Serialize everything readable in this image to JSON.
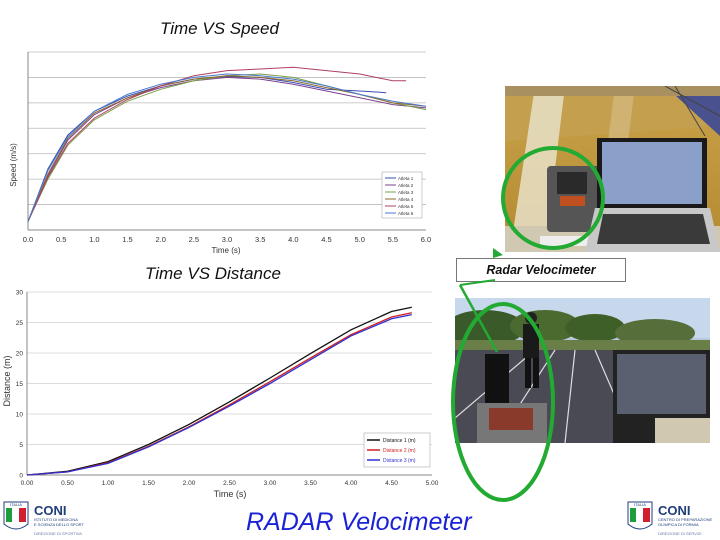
{
  "titles": {
    "speed": "Time VS Speed",
    "distance": "Time VS Distance",
    "radar_label": "Radar Velocimeter",
    "footer": "RADAR Velocimeter"
  },
  "colors": {
    "footer_text": "#1a22d6",
    "highlight_circle": "#22aa33",
    "series": [
      "#3a4fb5",
      "#7a4090",
      "#7aa048",
      "#8c6a2a",
      "#b04060",
      "#4a7ad0"
    ]
  },
  "logos": {
    "left": {
      "badge": "ITALIA",
      "word": "CONI",
      "line1": "ISTITUTO DI MEDICINA",
      "line2": "E SCIENZA DELLO SPORT",
      "line3": "DIREZIONE DI SPORTIVA"
    },
    "right": {
      "badge": "ITALIA",
      "word": "CONI",
      "line1": "CENTRO DI PREPARAZIONE",
      "line2": "OLIMPICA DI FORMIA",
      "line3": "DIREZIONE DI SERVIZI"
    }
  },
  "chart_data": [
    {
      "type": "line",
      "xlabel": "Time (s)",
      "ylabel": "Speed (m/s)",
      "xlim": [
        0,
        6
      ],
      "x_ticks": [
        "0.0",
        "0.5",
        "1.0",
        "1.5",
        "2.0",
        "2.5",
        "3.0",
        "3.5",
        "4.0",
        "4.5",
        "5.0",
        "5.5",
        "6.0"
      ],
      "grid": true,
      "legend_position": "bottom-right",
      "series": [
        {
          "name": "Atleta 1",
          "x": [
            0,
            0.3,
            0.6,
            1.0,
            1.5,
            2.0,
            2.5,
            3.0,
            3.5,
            4.0,
            4.5,
            5.0,
            5.4
          ],
          "y": [
            0.5,
            3.6,
            5.6,
            7.0,
            7.9,
            8.5,
            8.9,
            9.05,
            9.0,
            8.7,
            8.3,
            8.2,
            8.1
          ]
        },
        {
          "name": "Atleta 2",
          "x": [
            0,
            0.3,
            0.6,
            1.0,
            1.5,
            2.0,
            2.5,
            3.0,
            3.5,
            4.0,
            4.5,
            5.0,
            5.5,
            6.0
          ],
          "y": [
            0.5,
            3.2,
            5.3,
            6.8,
            7.8,
            8.4,
            8.8,
            9.0,
            8.9,
            8.6,
            8.2,
            7.8,
            7.4,
            7.2
          ]
        },
        {
          "name": "Atleta 3",
          "x": [
            0,
            0.3,
            0.6,
            1.0,
            1.5,
            2.0,
            2.5,
            3.0,
            3.5,
            4.0,
            4.5,
            5.0,
            5.5,
            6.0
          ],
          "y": [
            0.5,
            3.0,
            5.0,
            6.5,
            7.6,
            8.3,
            8.8,
            9.1,
            9.2,
            9.0,
            8.5,
            8.0,
            7.5,
            7.1
          ]
        },
        {
          "name": "Atleta 4",
          "x": [
            0,
            0.3,
            0.6,
            1.0,
            1.5,
            2.0,
            2.5,
            3.0,
            3.5,
            4.0,
            4.5,
            5.0,
            5.5,
            6.0
          ],
          "y": [
            0.5,
            3.3,
            5.4,
            6.9,
            7.8,
            8.5,
            8.9,
            9.1,
            9.0,
            8.8,
            8.4,
            8.0,
            7.5,
            7.3
          ]
        },
        {
          "name": "Atleta 5",
          "x": [
            0,
            0.3,
            0.6,
            1.0,
            1.5,
            2.0,
            2.5,
            3.0,
            3.5,
            4.0,
            4.5,
            5.0,
            5.5,
            5.7
          ],
          "y": [
            0.5,
            3.1,
            5.1,
            6.6,
            7.7,
            8.5,
            9.1,
            9.4,
            9.5,
            9.6,
            9.4,
            9.2,
            8.8,
            8.8
          ]
        },
        {
          "name": "Atleta 6",
          "x": [
            0,
            0.3,
            0.6,
            1.0,
            1.5,
            2.0,
            2.5,
            3.0,
            3.5,
            4.0,
            4.5,
            5.0,
            5.5,
            6.0
          ],
          "y": [
            0.5,
            3.5,
            5.5,
            7.0,
            8.0,
            8.6,
            9.0,
            9.2,
            9.1,
            8.9,
            8.5,
            8.0,
            7.6,
            7.3
          ]
        }
      ]
    },
    {
      "type": "line",
      "xlabel": "Time (s)",
      "ylabel": "Distance (m)",
      "xlim": [
        0,
        5
      ],
      "ylim": [
        0,
        30
      ],
      "x_ticks": [
        "0.00",
        "0.50",
        "1.00",
        "1.50",
        "2.00",
        "2.50",
        "3.00",
        "3.50",
        "4.00",
        "4.50",
        "5.00"
      ],
      "y_ticks": [
        "0",
        "5",
        "10",
        "15",
        "20",
        "25",
        "30"
      ],
      "grid": true,
      "legend_position": "bottom-right",
      "series": [
        {
          "name": "Distance 1 (m)",
          "color": "#111111",
          "x": [
            0,
            0.5,
            1.0,
            1.5,
            2.0,
            2.5,
            3.0,
            3.5,
            4.0,
            4.5,
            4.75
          ],
          "y": [
            0,
            0.6,
            2.2,
            5.0,
            8.3,
            12.0,
            15.9,
            19.9,
            23.8,
            26.8,
            27.5
          ]
        },
        {
          "name": "Distance 2 (m)",
          "color": "#d02020",
          "x": [
            0,
            0.5,
            1.0,
            1.5,
            2.0,
            2.5,
            3.0,
            3.5,
            4.0,
            4.5,
            4.75
          ],
          "y": [
            0,
            0.5,
            2.0,
            4.7,
            7.9,
            11.5,
            15.3,
            19.2,
            23.0,
            25.9,
            26.6
          ]
        },
        {
          "name": "Distance 3 (m)",
          "color": "#3030d0",
          "x": [
            0,
            0.5,
            1.0,
            1.5,
            2.0,
            2.5,
            3.0,
            3.5,
            4.0,
            4.5,
            4.75
          ],
          "y": [
            0,
            0.5,
            1.9,
            4.6,
            7.8,
            11.3,
            15.0,
            18.9,
            22.8,
            25.6,
            26.3
          ]
        }
      ]
    }
  ]
}
